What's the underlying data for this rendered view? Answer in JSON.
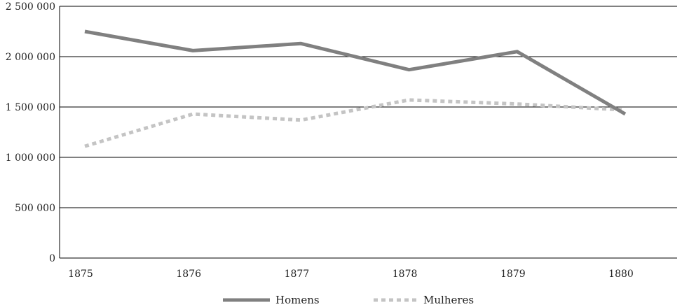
{
  "chart_data": {
    "type": "line",
    "title": "",
    "xlabel": "",
    "ylabel": "",
    "categories": [
      "1875",
      "1876",
      "1877",
      "1878",
      "1879",
      "1880"
    ],
    "ylim": [
      0,
      2500000
    ],
    "yticks": [
      0,
      500000,
      1000000,
      1500000,
      2000000,
      2500000
    ],
    "ytick_labels": [
      "0",
      "500 000",
      "1 000 000",
      "1 500 000",
      "2 000 000",
      "2 500 000"
    ],
    "grid": "horizontal",
    "legend_position": "bottom-center",
    "series": [
      {
        "name": "Homens",
        "style": "solid",
        "color": "#808080",
        "values": [
          2250000,
          2060000,
          2130000,
          1870000,
          2050000,
          1430000
        ]
      },
      {
        "name": "Mulheres",
        "style": "dashed",
        "color": "#c4c4c4",
        "values": [
          1110000,
          1430000,
          1370000,
          1570000,
          1530000,
          1470000
        ]
      }
    ]
  }
}
